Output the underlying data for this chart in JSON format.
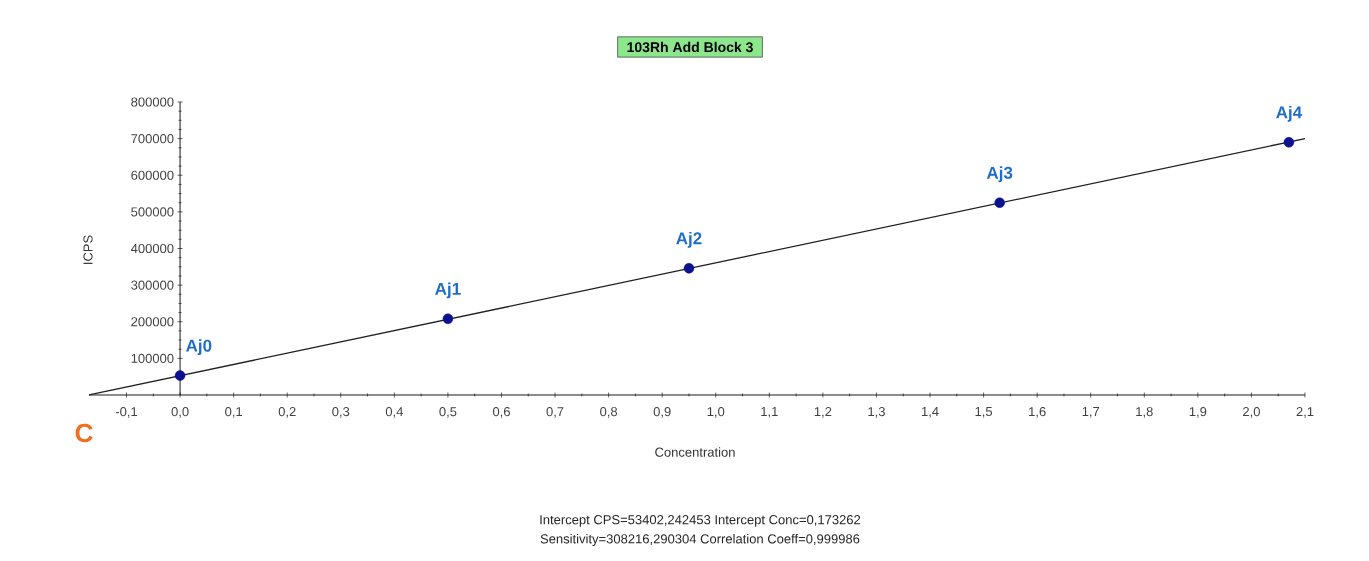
{
  "chart_data": {
    "type": "scatter",
    "title": "103Rh Add Block 3",
    "xlabel": "Concentration",
    "ylabel": "ICPS",
    "series": [
      {
        "color": "#0c1190",
        "marker": "circle",
        "x": [
          0,
          0.5,
          0.95,
          1.53,
          2.07
        ],
        "values": [
          53000,
          208000,
          346000,
          525000,
          690000
        ]
      },
      {
        "type": "line",
        "color": "#202020",
        "marker": "none",
        "line_style": "solid",
        "x": [
          -0.17,
          2.1
        ],
        "values": [
          0,
          700000
        ]
      }
    ],
    "xlim": [
      -0.17,
      2.1
    ],
    "ylim": [
      0,
      800000
    ],
    "xticks": [
      {
        "value": -0.1,
        "label": "-0,1"
      },
      {
        "value": 0,
        "label": "0,0"
      },
      {
        "value": 0.1,
        "label": "0,1"
      },
      {
        "value": 0.2,
        "label": "0,2"
      },
      {
        "value": 0.3,
        "label": "0,3"
      },
      {
        "value": 0.4,
        "label": "0,4"
      },
      {
        "value": 0.5,
        "label": "0,5"
      },
      {
        "value": 0.6,
        "label": "0,6"
      },
      {
        "value": 0.7,
        "label": "0,7"
      },
      {
        "value": 0.8,
        "label": "0,8"
      },
      {
        "value": 0.9,
        "label": "0,9"
      },
      {
        "value": 1.0,
        "label": "1,0"
      },
      {
        "value": 1.1,
        "label": "1,1"
      },
      {
        "value": 1.2,
        "label": "1,2"
      },
      {
        "value": 1.3,
        "label": "1,3"
      },
      {
        "value": 1.4,
        "label": "1,4"
      },
      {
        "value": 1.5,
        "label": "1,5"
      },
      {
        "value": 1.6,
        "label": "1,6"
      },
      {
        "value": 1.7,
        "label": "1,7"
      },
      {
        "value": 1.8,
        "label": "1,8"
      },
      {
        "value": 1.9,
        "label": "1,9"
      },
      {
        "value": 2.0,
        "label": "2,0"
      },
      {
        "value": 2.1,
        "label": "2,1"
      }
    ],
    "yticks": [
      100000,
      200000,
      300000,
      400000,
      500000,
      600000,
      700000,
      800000
    ],
    "grid": false,
    "annotations": [
      {
        "text": "Aj0",
        "x": 0,
        "y": 53000
      },
      {
        "text": "Aj1",
        "x": 0.5,
        "y": 208000
      },
      {
        "text": "Aj2",
        "x": 0.95,
        "y": 346000
      },
      {
        "text": "Aj3",
        "x": 1.53,
        "y": 525000
      },
      {
        "text": "Aj4",
        "x": 2.07,
        "y": 690000
      },
      "C",
      "Intercept CPS=53402,242453  Intercept Conc=0,173262",
      "Sensitivity=308216,290304  Correlation Coeff=0,999986"
    ]
  }
}
